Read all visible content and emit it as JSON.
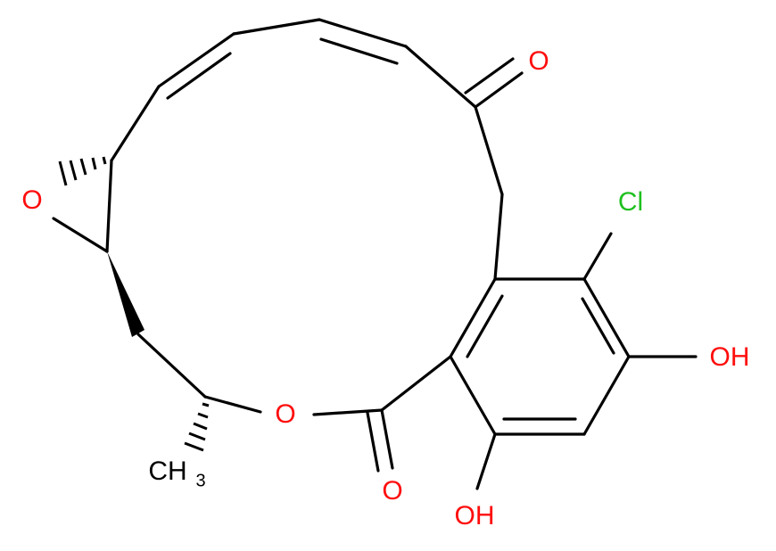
{
  "molecule": {
    "atoms": [
      {
        "label": "O"
      },
      {
        "label": "Cl"
      },
      {
        "label": "OH"
      },
      {
        "label": "OH"
      },
      {
        "label": "O"
      },
      {
        "label": "O"
      },
      {
        "label": "O"
      }
    ],
    "methyl": {
      "main": "CH",
      "subscript": "3"
    }
  }
}
